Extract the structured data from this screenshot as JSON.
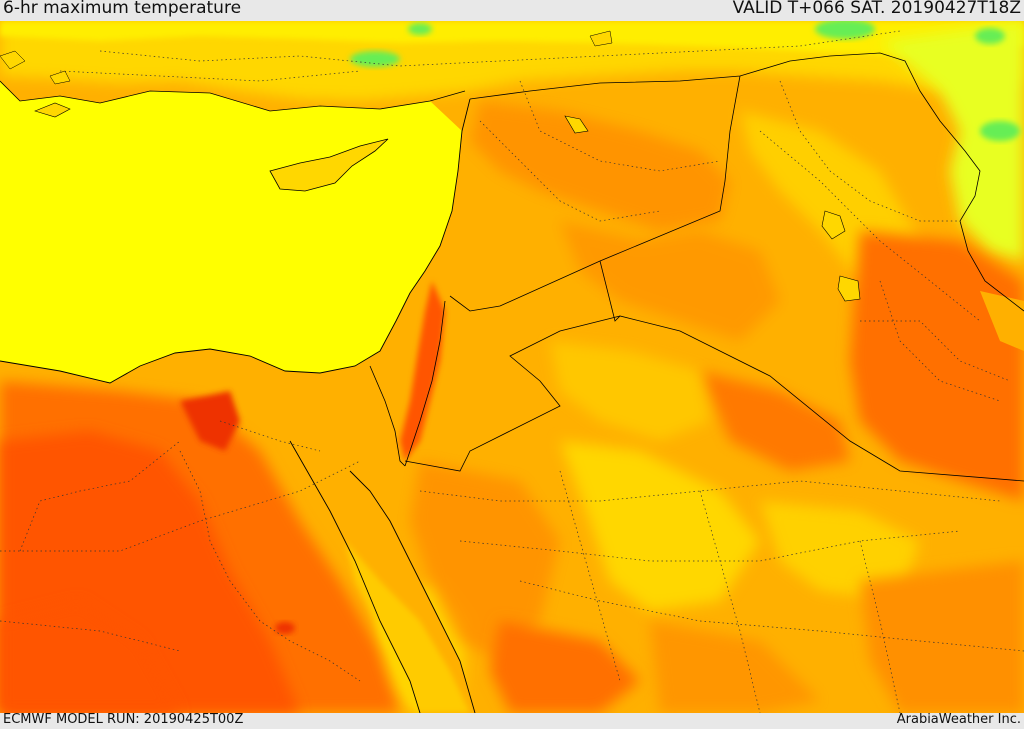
{
  "header": {
    "title": "6-hr maximum temperature",
    "valid_time": "VALID T+066 SAT. 20190427T18Z"
  },
  "footer": {
    "model_run": "ECMWF MODEL RUN: 20190425T00Z",
    "credit": "ArabiaWeather Inc."
  },
  "colors": {
    "sea": "#ffff00",
    "warm_yellow": "#ffd700",
    "orange_light": "#ffb000",
    "orange": "#ff9000",
    "orange_dark": "#ff7000",
    "red_orange": "#ff5400",
    "red": "#ee3000",
    "cool_yellow": "#e8ff20",
    "green": "#66ee55",
    "border_line": "#000000"
  }
}
